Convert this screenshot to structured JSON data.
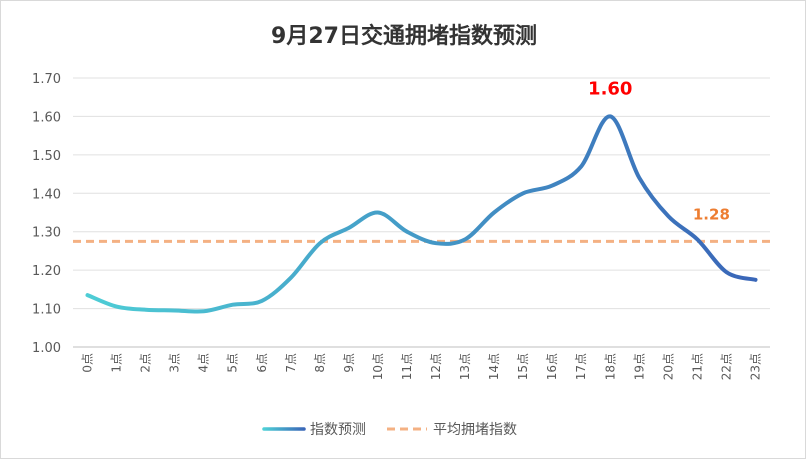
{
  "chart_data": {
    "type": "line",
    "title": "9月27日交通拥堵指数预测",
    "categories": [
      "0点",
      "1点",
      "2点",
      "3点",
      "4点",
      "5点",
      "6点",
      "7点",
      "8点",
      "9点",
      "10点",
      "11点",
      "12点",
      "13点",
      "14点",
      "15点",
      "16点",
      "17点",
      "18点",
      "19点",
      "20点",
      "21点",
      "22点",
      "23点"
    ],
    "series": [
      {
        "name": "指数预测",
        "values": [
          1.135,
          1.105,
          1.097,
          1.095,
          1.093,
          1.11,
          1.12,
          1.18,
          1.27,
          1.31,
          1.35,
          1.3,
          1.27,
          1.28,
          1.35,
          1.4,
          1.42,
          1.47,
          1.6,
          1.44,
          1.34,
          1.28,
          1.195,
          1.175
        ],
        "color_start": "#4ecfd6",
        "color_end": "#3a67b8"
      },
      {
        "name": "平均拥堵指数",
        "values": [
          1.275,
          1.275,
          1.275,
          1.275,
          1.275,
          1.275,
          1.275,
          1.275,
          1.275,
          1.275,
          1.275,
          1.275,
          1.275,
          1.275,
          1.275,
          1.275,
          1.275,
          1.275,
          1.275,
          1.275,
          1.275,
          1.275,
          1.275,
          1.275
        ],
        "color": "#f4b183",
        "style": "dashed"
      }
    ],
    "ylim": [
      1.0,
      1.7
    ],
    "yticks": [
      "1.00",
      "1.10",
      "1.20",
      "1.30",
      "1.40",
      "1.50",
      "1.60",
      "1.70"
    ],
    "grid": true,
    "legend": "bottom",
    "annotations": [
      {
        "text": "1.60",
        "color": "#ff0000",
        "target": "peak"
      },
      {
        "text": "1.28",
        "color": "#ed7d31",
        "target": "average"
      }
    ]
  }
}
